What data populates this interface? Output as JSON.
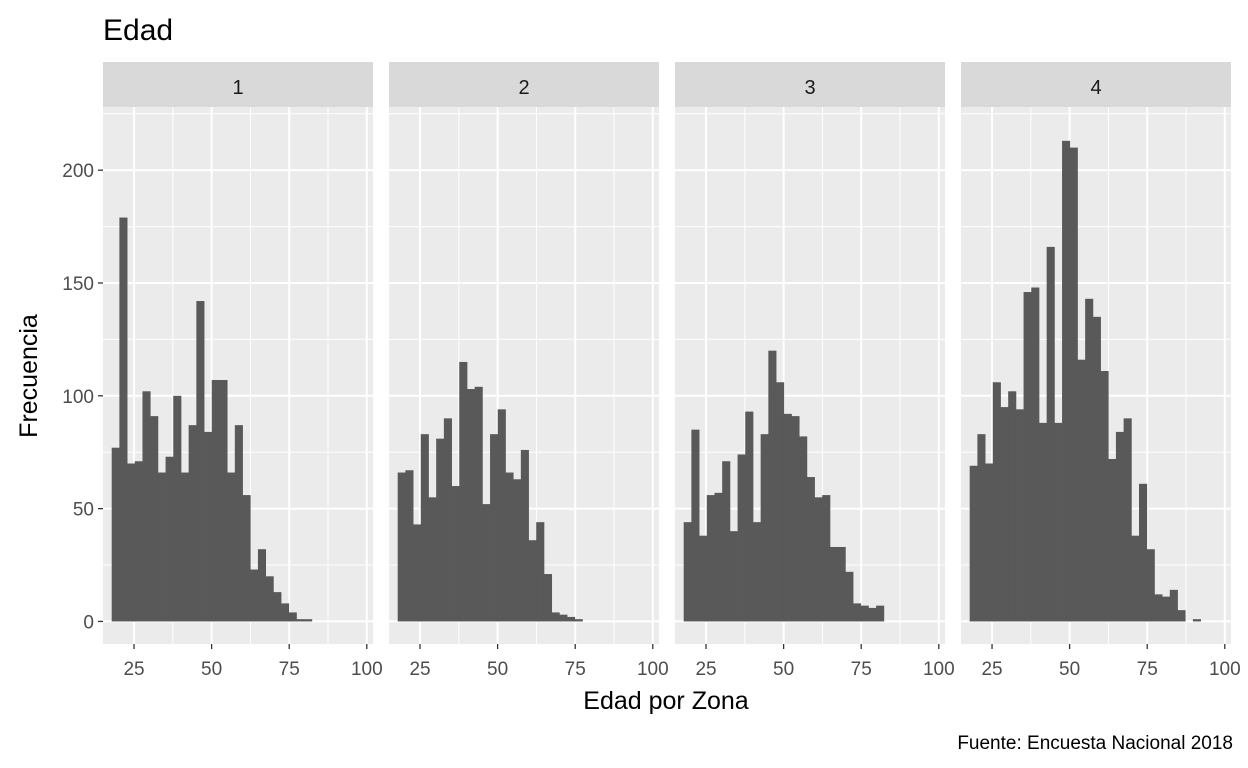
{
  "chart_data": {
    "type": "bar",
    "subtype": "faceted-histogram",
    "title": "Edad",
    "xlabel": "Edad por Zona",
    "ylabel": "Frecuencia",
    "caption": "Fuente: Encuesta Nacional 2018",
    "xlim": [
      15,
      102
    ],
    "ylim": [
      -10,
      228
    ],
    "x_ticks": [
      25,
      50,
      75,
      100
    ],
    "y_ticks": [
      0,
      50,
      100,
      150,
      200
    ],
    "bin_width": 2.48,
    "first_bin_start": 17.8,
    "grid": true,
    "bar_color": "#595959",
    "panel_background": "#ebebeb",
    "strip_background": "#d9d9d9",
    "facets": [
      {
        "label": "1",
        "values": [
          77,
          179,
          70,
          71,
          102,
          91,
          66,
          73,
          100,
          66,
          87,
          142,
          84,
          107,
          107,
          66,
          87,
          56,
          23,
          32,
          20,
          13,
          8,
          4,
          1,
          1
        ]
      },
      {
        "label": "2",
        "values": [
          66,
          67,
          43,
          83,
          55,
          81,
          90,
          60,
          115,
          103,
          104,
          52,
          83,
          94,
          66,
          63,
          76,
          36,
          44,
          21,
          4,
          3,
          2,
          1
        ]
      },
      {
        "label": "3",
        "values": [
          44,
          85,
          38,
          56,
          57,
          71,
          40,
          74,
          93,
          44,
          83,
          120,
          106,
          92,
          91,
          82,
          64,
          55,
          56,
          33,
          33,
          22,
          8,
          7,
          6,
          7
        ]
      },
      {
        "label": "4",
        "values": [
          69,
          83,
          70,
          106,
          95,
          102,
          94,
          146,
          148,
          88,
          166,
          88,
          213,
          210,
          116,
          143,
          135,
          111,
          72,
          84,
          90,
          38,
          61,
          32,
          12,
          11,
          14,
          5,
          0,
          1
        ]
      }
    ]
  }
}
